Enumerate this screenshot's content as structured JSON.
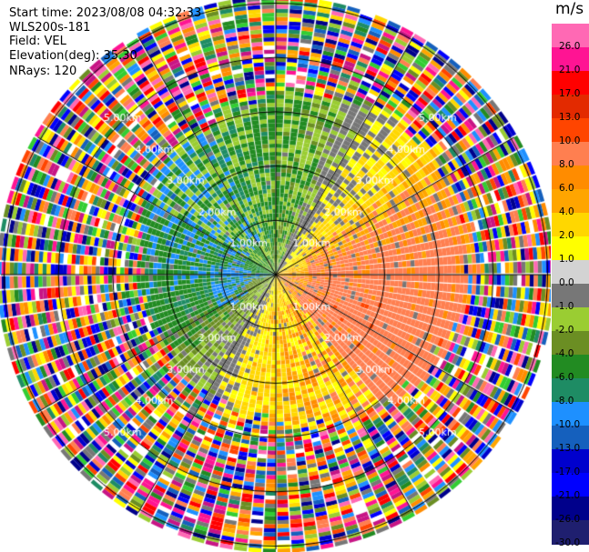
{
  "header": {
    "start_time": "Start time: 2023/08/08 04:32:33",
    "instrument": "WLS200s-181",
    "field": "Field: VEL",
    "elevation": "Elevation(deg): 35.30",
    "nrays": "NRays: 120"
  },
  "range_rings": {
    "labels": [
      "1.00km",
      "2.00km",
      "3.00km",
      "4.00km",
      "5.00km"
    ]
  },
  "colorbar": {
    "unit": "m/s",
    "labels": [
      "26.0",
      "21.0",
      "17.0",
      "13.0",
      "10.0",
      "8.0",
      "6.0",
      "4.0",
      "2.0",
      "1.0",
      "0.0",
      "-1.0",
      "-2.0",
      "-4.0",
      "-6.0",
      "-8.0",
      "-10.0",
      "-13.0",
      "-17.0",
      "-21.0",
      "-26.0",
      "-30.0"
    ],
    "colors": [
      "#ff69b4",
      "#ff1493",
      "#ff0000",
      "#e32a00",
      "#ff4500",
      "#ff7f50",
      "#ff8c00",
      "#ffa500",
      "#ffd700",
      "#ffff00",
      "#d3d3d3",
      "#777777",
      "#9acd32",
      "#6b8e23",
      "#228b22",
      "#1e8c64",
      "#1e90ff",
      "#1560bd",
      "#0000cd",
      "#0000ff",
      "#00008b",
      "#1f1f6f"
    ]
  }
}
